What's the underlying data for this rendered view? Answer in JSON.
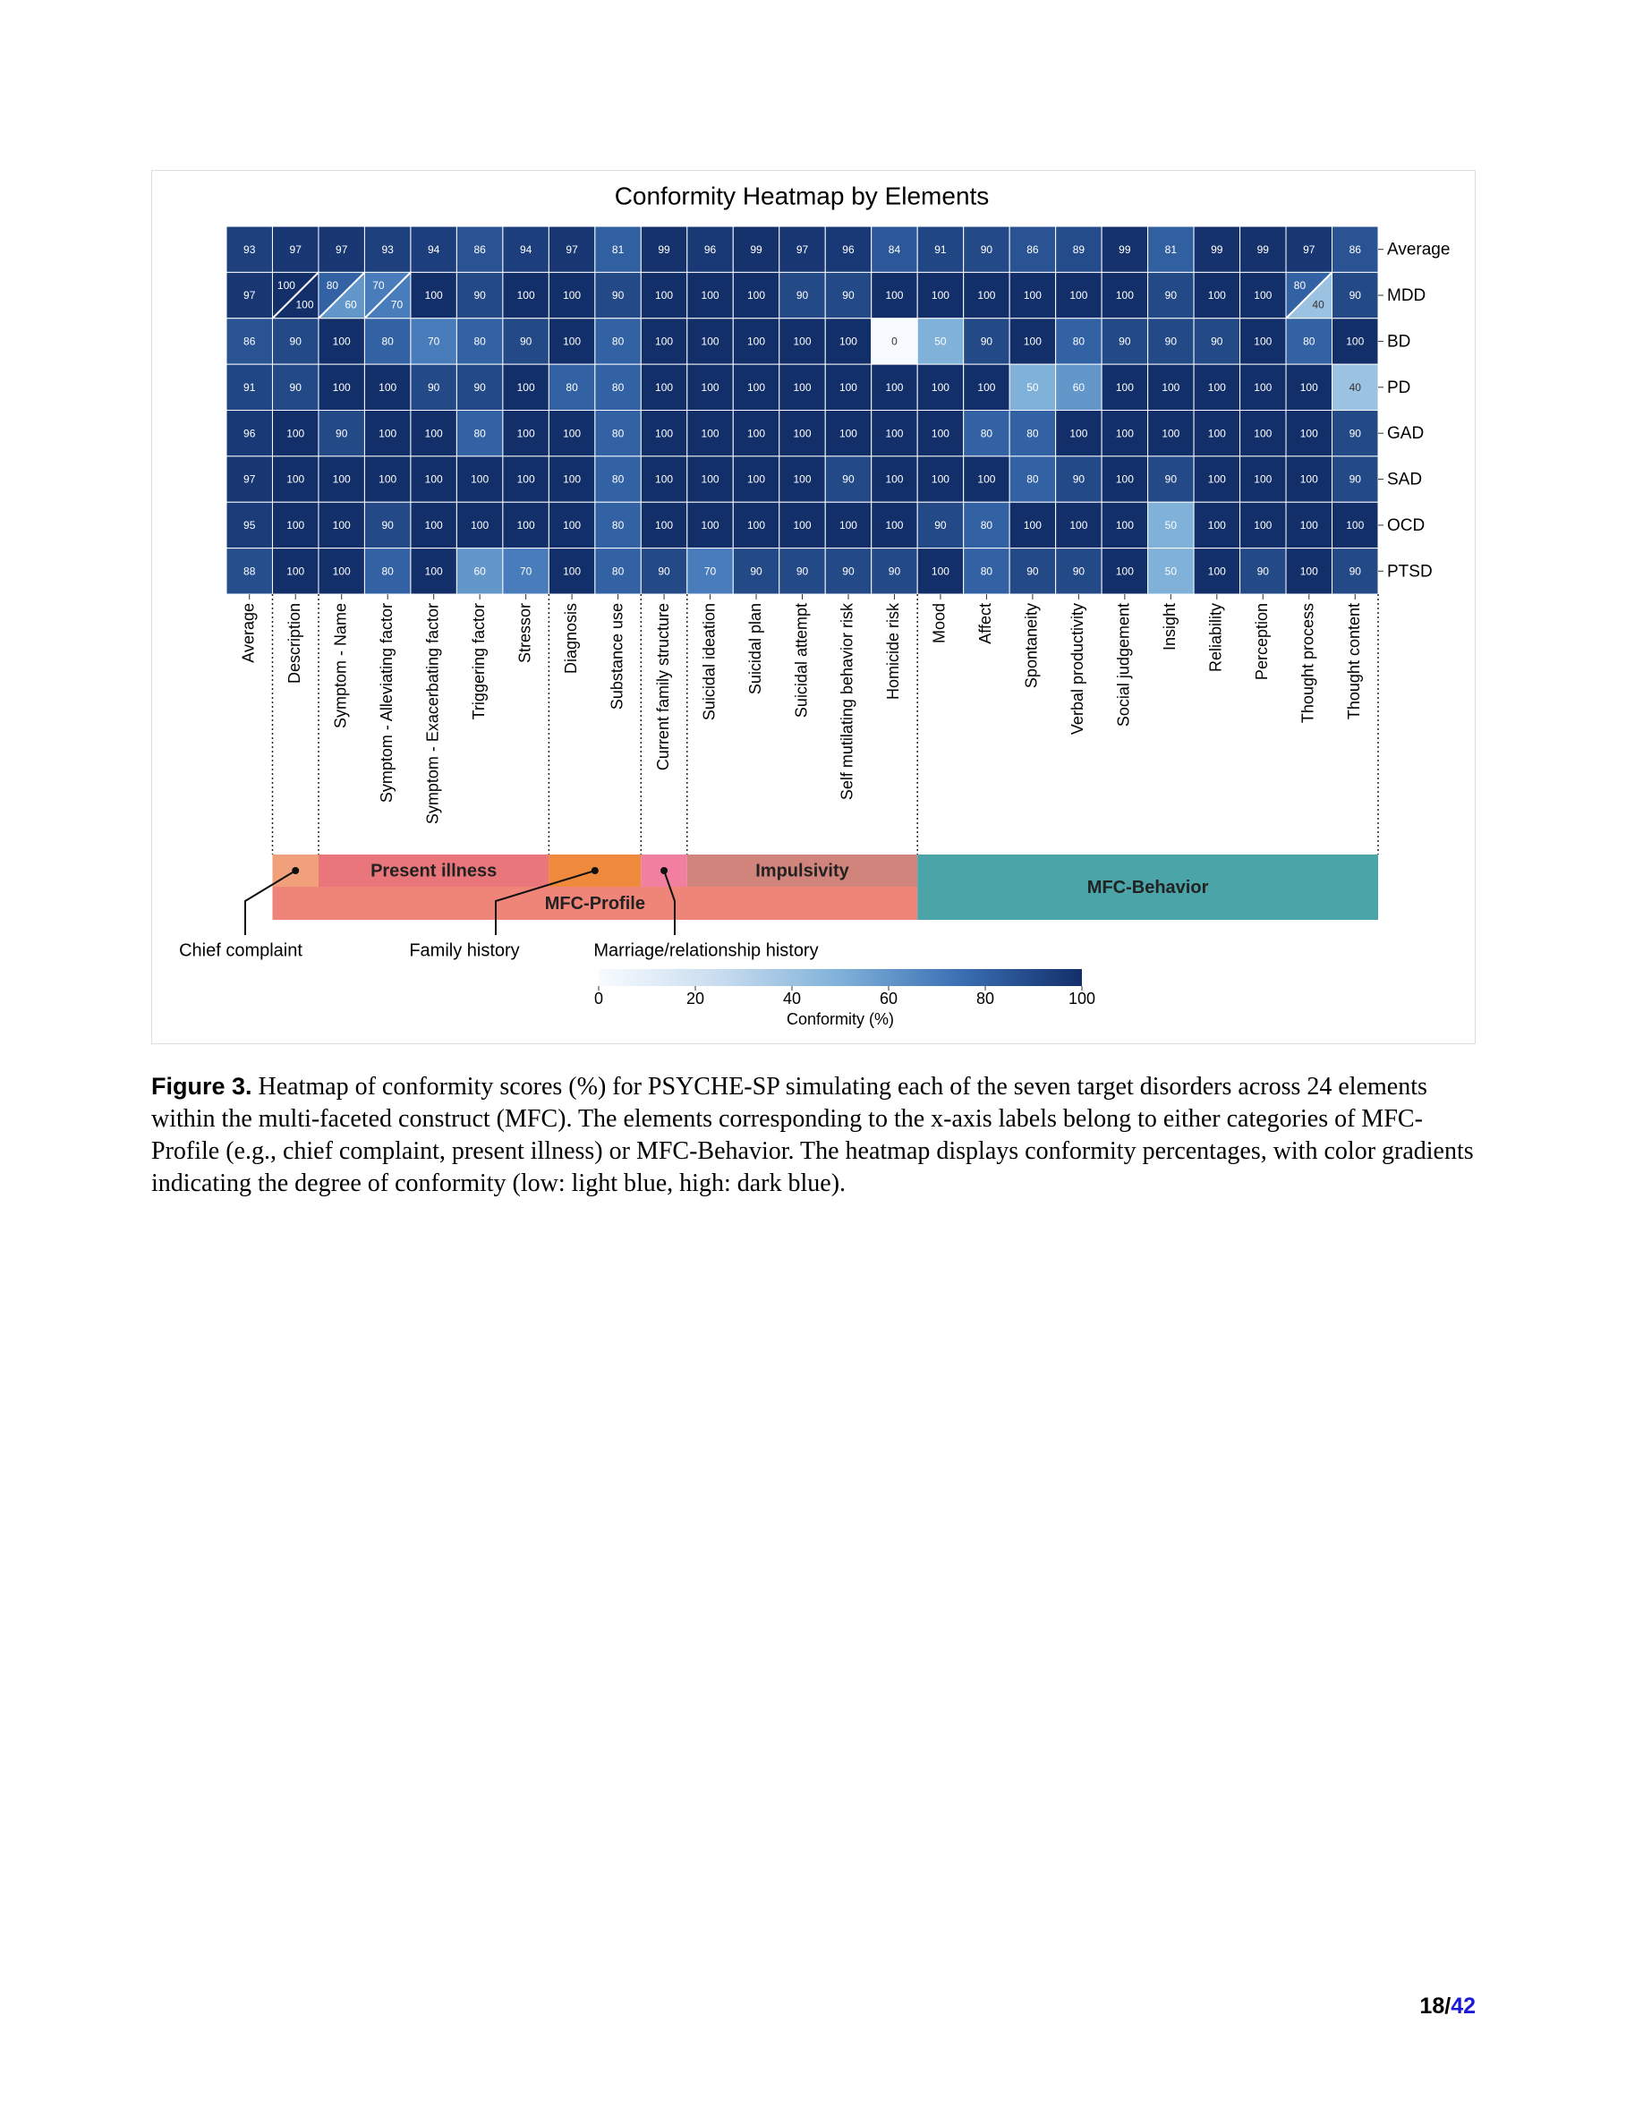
{
  "chart_data": {
    "type": "heatmap",
    "title": "Conformity Heatmap by Elements",
    "columns": [
      "Average",
      "Description",
      "Symptom - Name",
      "Symptom - Alleviating factor",
      "Symptom - Exacerbating factor",
      "Triggering factor",
      "Stressor",
      "Diagnosis",
      "Substance use",
      "Current family structure",
      "Suicidal ideation",
      "Suicidal plan",
      "Suicidal attempt",
      "Self mutilating behavior risk",
      "Homicide risk",
      "Mood",
      "Affect",
      "Spontaneity",
      "Verbal productivity",
      "Social judgement",
      "Insight",
      "Reliability",
      "Perception",
      "Thought process",
      "Thought content"
    ],
    "rows": [
      "Average",
      "MDD",
      "BD",
      "PD",
      "GAD",
      "SAD",
      "OCD",
      "PTSD"
    ],
    "values": [
      [
        93,
        97,
        97,
        93,
        94,
        86,
        94,
        97,
        81,
        99,
        96,
        99,
        97,
        96,
        84,
        91,
        90,
        86,
        89,
        99,
        81,
        99,
        99,
        97,
        86
      ],
      [
        97,
        [
          100,
          100
        ],
        [
          80,
          60
        ],
        [
          70,
          70
        ],
        100,
        90,
        100,
        100,
        90,
        100,
        100,
        100,
        90,
        90,
        100,
        100,
        100,
        100,
        100,
        100,
        90,
        100,
        100,
        [
          80,
          40
        ],
        90
      ],
      [
        86,
        90,
        100,
        80,
        70,
        80,
        90,
        100,
        80,
        100,
        100,
        100,
        100,
        100,
        0,
        50,
        90,
        100,
        80,
        90,
        90,
        90,
        100,
        80,
        100
      ],
      [
        91,
        90,
        100,
        100,
        90,
        90,
        100,
        80,
        80,
        100,
        100,
        100,
        100,
        100,
        100,
        100,
        100,
        50,
        60,
        100,
        100,
        100,
        100,
        100,
        40
      ],
      [
        96,
        100,
        90,
        100,
        100,
        80,
        100,
        100,
        80,
        100,
        100,
        100,
        100,
        100,
        100,
        100,
        80,
        80,
        100,
        100,
        100,
        100,
        100,
        100,
        90
      ],
      [
        97,
        100,
        100,
        100,
        100,
        100,
        100,
        100,
        80,
        100,
        100,
        100,
        100,
        90,
        100,
        100,
        100,
        80,
        90,
        100,
        90,
        100,
        100,
        100,
        90
      ],
      [
        95,
        100,
        100,
        90,
        100,
        100,
        100,
        100,
        80,
        100,
        100,
        100,
        100,
        100,
        100,
        90,
        80,
        100,
        100,
        100,
        50,
        100,
        100,
        100,
        100
      ],
      [
        88,
        100,
        100,
        80,
        100,
        60,
        70,
        100,
        80,
        90,
        70,
        90,
        90,
        90,
        90,
        100,
        80,
        90,
        90,
        100,
        50,
        100,
        90,
        100,
        90
      ]
    ],
    "clim": [
      0,
      100
    ],
    "colormap": [
      "#f7fbff",
      "#c8dcef",
      "#7fb1d9",
      "#3a6fb3",
      "#132f6a"
    ],
    "colorbar": {
      "label": "Conformity (%)",
      "ticks": [
        0,
        20,
        40,
        60,
        80,
        100
      ]
    },
    "groups": [
      {
        "name": "MFC-Profile",
        "first": 1,
        "last": 14,
        "color": "#ef8478",
        "subgroups": [
          {
            "name": "Chief complaint",
            "first": 1,
            "last": 1,
            "color": "#f0a07a",
            "callout": true
          },
          {
            "name": "Present illness",
            "first": 2,
            "last": 6,
            "color": "#e8767a",
            "callout": false
          },
          {
            "name": "Family history",
            "first": 7,
            "last": 8,
            "color": "#ef8a3c",
            "callout": true
          },
          {
            "name": "Marriage/relationship history",
            "first": 9,
            "last": 9,
            "color": "#f07fa0",
            "callout": true
          },
          {
            "name": "Impulsivity",
            "first": 10,
            "last": 14,
            "color": "#d0847c",
            "callout": false
          }
        ]
      },
      {
        "name": "MFC-Behavior",
        "first": 15,
        "last": 24,
        "color": "#4aa4a8",
        "subgroups": []
      }
    ]
  },
  "caption": {
    "label": "Figure 3.",
    "text": "Heatmap of conformity scores (%) for PSYCHE-SP simulating each of the seven target disorders across 24 elements within the multi-faceted construct (MFC). The elements corresponding to the x-axis labels belong to either categories of MFC-Profile (e.g., chief complaint, present illness) or MFC-Behavior. The heatmap displays conformity percentages, with color gradients indicating the degree of conformity (low: light blue, high: dark blue)."
  },
  "page_number": {
    "current": "18",
    "separator": "/",
    "total": "42"
  }
}
